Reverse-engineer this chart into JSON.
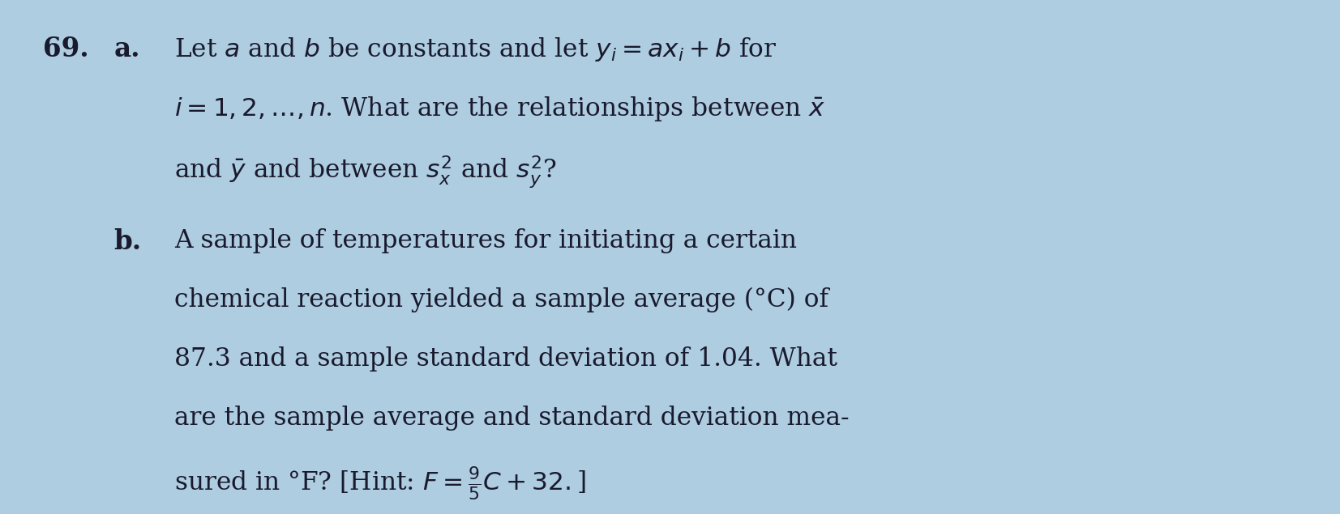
{
  "background_color": "#aecde0",
  "fig_width": 16.53,
  "fig_height": 6.35,
  "text_color": "#1a1a2e",
  "problem_number": "69.",
  "part_a_label": "a.",
  "part_b_label": "b.",
  "part_a_line1": "Let $a$ and $b$ be constants and let $y_i = ax_i + b$ for",
  "part_a_line2": "$i = 1, 2, \\ldots, n$. What are the relationships between $\\bar{x}$",
  "part_a_line3": "and $\\bar{y}$ and between $s_x^2$ and $s_y^2$?",
  "part_b_line1": "A sample of temperatures for initiating a certain",
  "part_b_line2": "chemical reaction yielded a sample average (°C) of",
  "part_b_line3": "87.3 and a sample standard deviation of 1.04. What",
  "part_b_line4": "are the sample average and standard deviation mea-",
  "part_b_line5": "sured in °F? [Hint: $F = \\frac{9}{5}C + 32.$]",
  "font_size_main": 22.5,
  "label_fontsize": 23.5
}
